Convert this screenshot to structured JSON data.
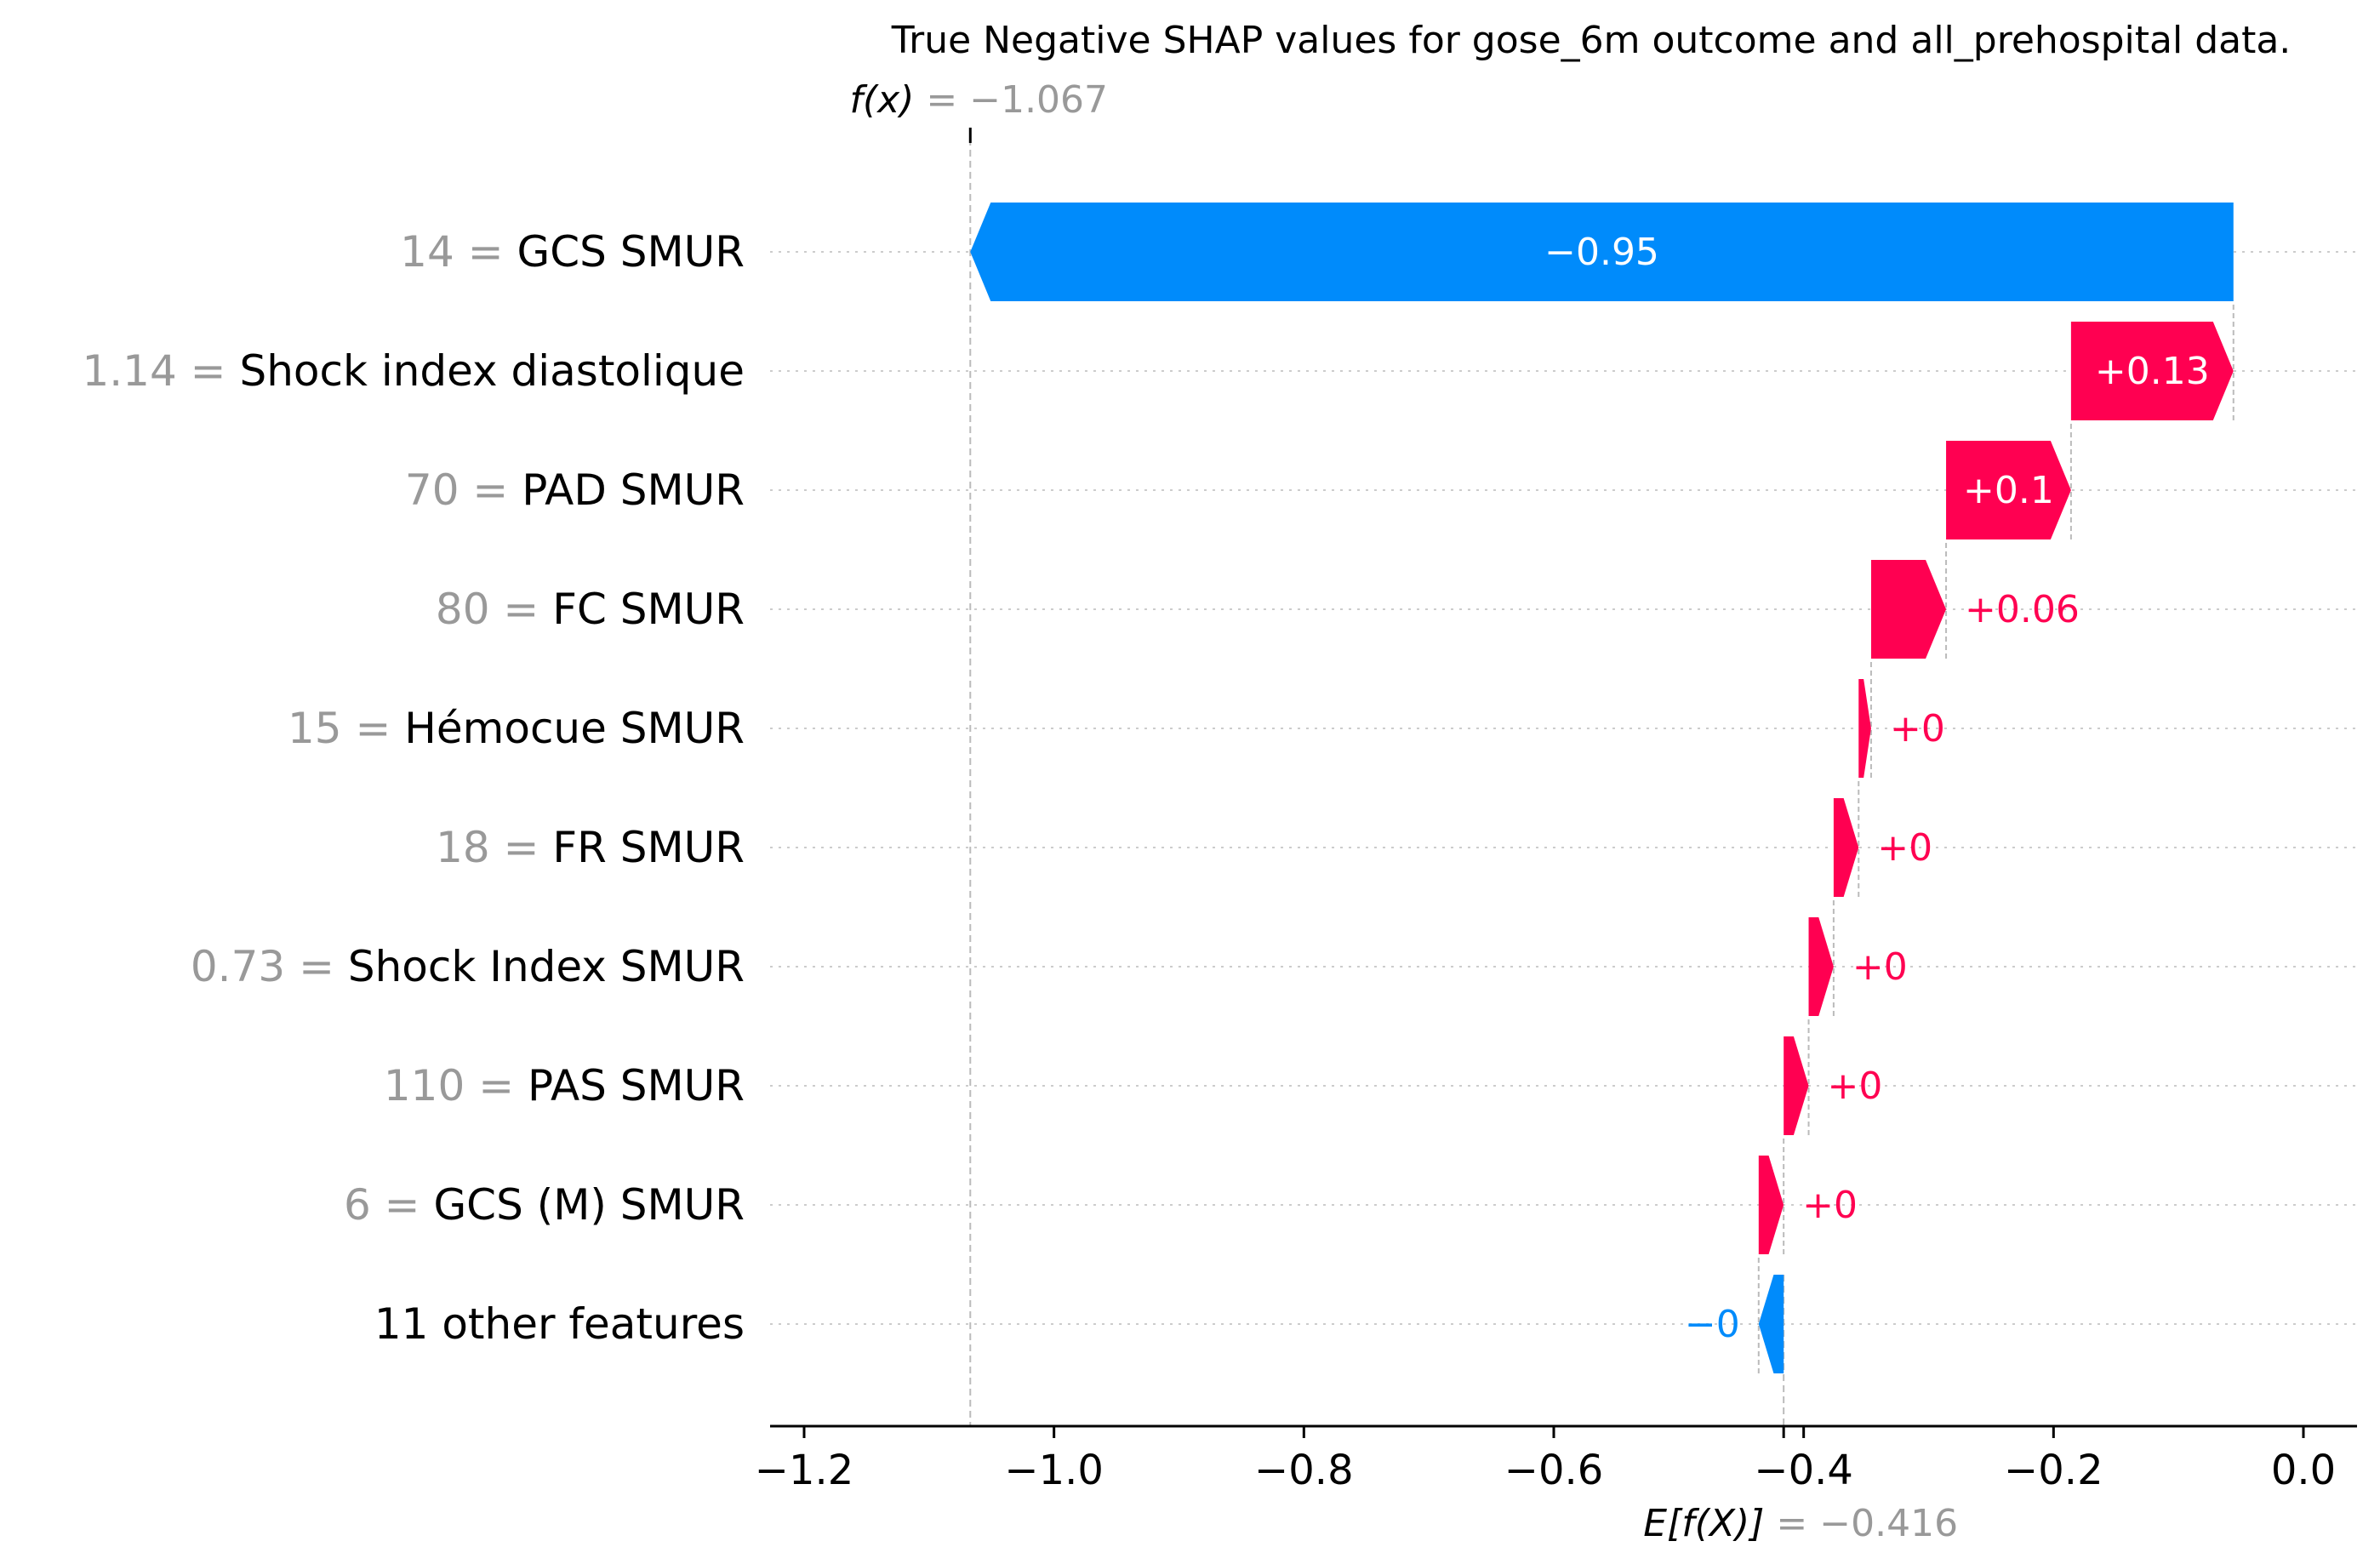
{
  "chart_data": {
    "type": "bar",
    "subtype": "shap-waterfall",
    "title": "True Negative SHAP values for gose_6m outcome and all_prehospital data.",
    "fx": {
      "label": "f(x)",
      "value_label": "= −1.067",
      "value": -1.067
    },
    "efx": {
      "label": "E[f(X)]",
      "value_label": "= −0.416",
      "value": -0.416
    },
    "features": [
      {
        "value_label": "14 =",
        "name": "GCS SMUR",
        "shap": -0.95,
        "shap_label": "−0.95"
      },
      {
        "value_label": "1.14 =",
        "name": "Shock index diastolique",
        "shap": 0.13,
        "shap_label": "+0.13"
      },
      {
        "value_label": "70 =",
        "name": "PAD  SMUR",
        "shap": 0.1,
        "shap_label": "+0.1"
      },
      {
        "value_label": "80 =",
        "name": "FC SMUR",
        "shap": 0.06,
        "shap_label": "+0.06"
      },
      {
        "value_label": "15 =",
        "name": "Hémocue SMUR",
        "shap": 0.01,
        "shap_label": "+0"
      },
      {
        "value_label": "18 =",
        "name": "FR SMUR",
        "shap": 0.02,
        "shap_label": "+0"
      },
      {
        "value_label": "0.73 =",
        "name": "Shock Index SMUR",
        "shap": 0.02,
        "shap_label": "+0"
      },
      {
        "value_label": "110 =",
        "name": "PAS  SMUR",
        "shap": 0.02,
        "shap_label": "+0"
      },
      {
        "value_label": "6 =",
        "name": "GCS (M) SMUR",
        "shap": 0.02,
        "shap_label": "+0"
      },
      {
        "value_label": "",
        "name": "11 other features",
        "shap": -0.02,
        "shap_label": "−0"
      }
    ],
    "xlim": [
      -1.23,
      0.04
    ],
    "xticks": [
      -1.2,
      -1.0,
      -0.8,
      -0.6,
      -0.4,
      -0.2,
      0.0
    ],
    "xtick_labels": [
      "−1.2",
      "−1.0",
      "−0.8",
      "−0.6",
      "−0.4",
      "−0.2",
      "0.0"
    ],
    "grid": false,
    "colors": {
      "positive": "#ff0051",
      "negative": "#008bfb",
      "value_gray": "#999999",
      "text": "#000000",
      "guide": "#bbbbbb"
    }
  }
}
